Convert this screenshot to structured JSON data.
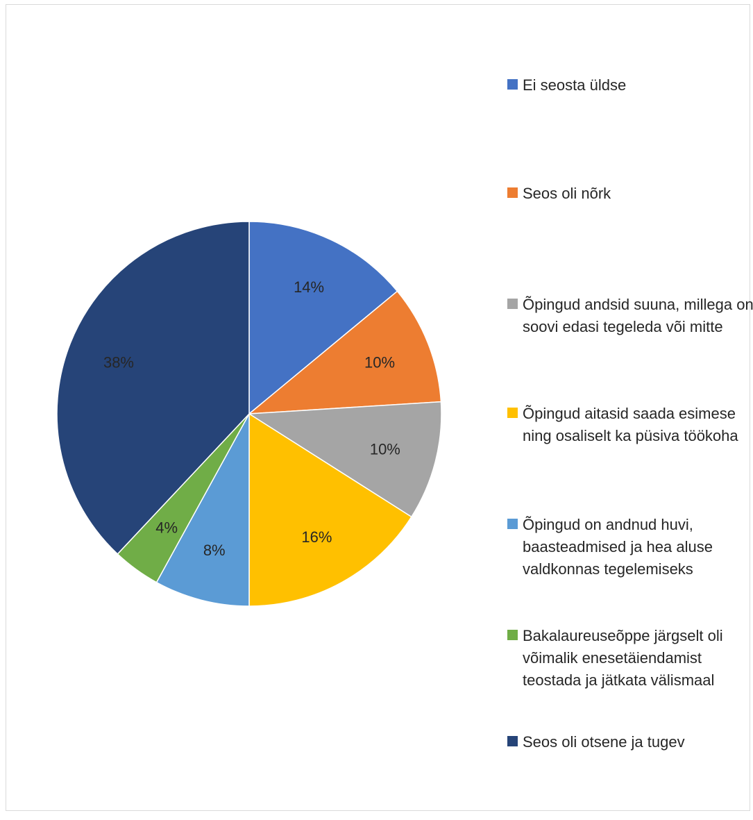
{
  "chart_data": {
    "type": "pie",
    "title": "",
    "start_angle_deg": 0,
    "direction": "clockwise",
    "legend_position": "right",
    "slices": [
      {
        "label": "Ei seosta üldse",
        "value": 14,
        "value_label": "14%",
        "color": "#4472C4"
      },
      {
        "label": "Seos oli nõrk",
        "value": 10,
        "value_label": "10%",
        "color": "#ED7D31"
      },
      {
        "label": "Õpingud andsid suuna, millega on soovi edasi tegeleda või mitte",
        "value": 10,
        "value_label": "10%",
        "color": "#A5A5A5"
      },
      {
        "label": "Õpingud aitasid saada esimese ning osaliselt ka püsiva töökoha",
        "value": 16,
        "value_label": "16%",
        "color": "#FFC000"
      },
      {
        "label": "Õpingud on andnud huvi, baasteadmised ja hea aluse valdkonnas tegelemiseks",
        "value": 8,
        "value_label": "8%",
        "color": "#5B9BD5"
      },
      {
        "label": "Bakalaureuseõppe järgselt oli võimalik enesetäiendamist teostada ja jätkata välismaal",
        "value": 4,
        "value_label": "4%",
        "color": "#70AD47"
      },
      {
        "label": "Seos oli otsene ja tugev",
        "value": 38,
        "value_label": "38%",
        "color": "#264478"
      }
    ]
  }
}
